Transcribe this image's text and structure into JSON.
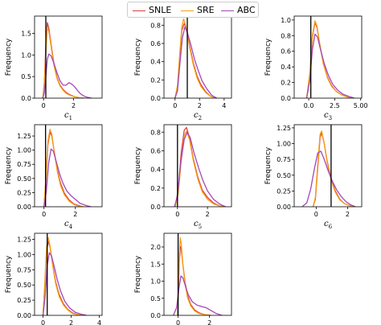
{
  "chart_data": [
    {
      "type": "line",
      "xlabel": "c",
      "xsub": "1",
      "ylabel": "Frequency",
      "xlim": [
        -0.6,
        3.9
      ],
      "ylim": [
        0,
        1.9
      ],
      "xticks": [
        "0",
        "2"
      ],
      "xtick_values": [
        0,
        2
      ],
      "yticks": [
        "0.0",
        "0.5",
        "1.0",
        "1.5"
      ],
      "ytick_values": [
        0.0,
        0.5,
        1.0,
        1.5
      ],
      "truth": 0.15,
      "series": [
        {
          "name": "SNLE",
          "x": [
            -0.05,
            0.05,
            0.15,
            0.25,
            0.35,
            0.5,
            0.7,
            0.9,
            1.1,
            1.3,
            1.5,
            1.8,
            2.1,
            2.4,
            2.7
          ],
          "y": [
            0,
            0.35,
            1.2,
            1.75,
            1.62,
            1.25,
            0.78,
            0.47,
            0.3,
            0.2,
            0.13,
            0.07,
            0.03,
            0.01,
            0
          ]
        },
        {
          "name": "SRE",
          "x": [
            -0.05,
            0.05,
            0.15,
            0.25,
            0.35,
            0.5,
            0.7,
            0.9,
            1.1,
            1.3,
            1.5,
            1.8,
            2.1,
            2.4,
            2.7
          ],
          "y": [
            0,
            0.3,
            1.05,
            1.62,
            1.55,
            1.2,
            0.74,
            0.45,
            0.28,
            0.18,
            0.11,
            0.06,
            0.03,
            0.01,
            0
          ]
        },
        {
          "name": "ABC",
          "x": [
            -0.05,
            0.05,
            0.15,
            0.25,
            0.35,
            0.5,
            0.7,
            0.9,
            1.1,
            1.3,
            1.5,
            1.7,
            1.9,
            2.1,
            2.3,
            2.5,
            2.8,
            3.2
          ],
          "y": [
            0,
            0.12,
            0.5,
            0.9,
            1.02,
            0.98,
            0.8,
            0.58,
            0.4,
            0.3,
            0.3,
            0.36,
            0.32,
            0.25,
            0.16,
            0.09,
            0.03,
            0
          ]
        }
      ]
    },
    {
      "type": "line",
      "xlabel": "c",
      "xsub": "2",
      "ylabel": "Frequency",
      "xlim": [
        -0.9,
        4.6
      ],
      "ylim": [
        0,
        0.9
      ],
      "xticks": [
        "0",
        "2",
        "4"
      ],
      "xtick_values": [
        0,
        2,
        4
      ],
      "yticks": [
        "0.0",
        "0.2",
        "0.4",
        "0.6",
        "0.8"
      ],
      "ytick_values": [
        0,
        0.2,
        0.4,
        0.6,
        0.8
      ],
      "truth": 1.0,
      "series": [
        {
          "name": "SNLE",
          "x": [
            0.0,
            0.2,
            0.4,
            0.55,
            0.75,
            0.95,
            1.2,
            1.5,
            1.8,
            2.1,
            2.5,
            2.9,
            3.3
          ],
          "y": [
            0,
            0.12,
            0.48,
            0.74,
            0.82,
            0.75,
            0.57,
            0.38,
            0.24,
            0.15,
            0.07,
            0.02,
            0
          ]
        },
        {
          "name": "SRE",
          "x": [
            0.0,
            0.2,
            0.4,
            0.55,
            0.7,
            0.9,
            1.2,
            1.5,
            1.8,
            2.1,
            2.5,
            2.9,
            3.3
          ],
          "y": [
            0,
            0.14,
            0.52,
            0.78,
            0.87,
            0.78,
            0.55,
            0.36,
            0.22,
            0.13,
            0.06,
            0.02,
            0
          ]
        },
        {
          "name": "ABC",
          "x": [
            0.0,
            0.2,
            0.4,
            0.6,
            0.8,
            1.0,
            1.3,
            1.6,
            1.9,
            2.2,
            2.6,
            3.0,
            3.4
          ],
          "y": [
            0,
            0.08,
            0.38,
            0.66,
            0.78,
            0.72,
            0.58,
            0.42,
            0.3,
            0.19,
            0.1,
            0.03,
            0
          ]
        }
      ]
    },
    {
      "type": "line",
      "xlabel": "c",
      "xsub": "3",
      "ylabel": "Frequency",
      "xlim": [
        -1.4,
        5.1
      ],
      "ylim": [
        0,
        1.05
      ],
      "xticks": [
        "0.0",
        "2.5",
        "5.00"
      ],
      "xtick_values": [
        0,
        2.5,
        5.0
      ],
      "yticks": [
        "0.0",
        "0.2",
        "0.4",
        "0.6",
        "0.8",
        "1.0"
      ],
      "ytick_values": [
        0,
        0.2,
        0.4,
        0.6,
        0.8,
        1.0
      ],
      "truth": 0.2,
      "series": [
        {
          "name": "SNLE",
          "x": [
            -0.2,
            0.1,
            0.35,
            0.6,
            0.8,
            1.05,
            1.4,
            1.8,
            2.2,
            2.7,
            3.2,
            3.8,
            4.3
          ],
          "y": [
            0,
            0.28,
            0.78,
            0.97,
            0.9,
            0.7,
            0.45,
            0.27,
            0.16,
            0.08,
            0.04,
            0.01,
            0
          ]
        },
        {
          "name": "SRE",
          "x": [
            -0.2,
            0.1,
            0.35,
            0.6,
            0.8,
            1.05,
            1.4,
            1.8,
            2.2,
            2.7,
            3.2,
            3.8,
            4.3
          ],
          "y": [
            0,
            0.32,
            0.8,
            0.99,
            0.92,
            0.7,
            0.44,
            0.26,
            0.15,
            0.08,
            0.04,
            0.01,
            0
          ]
        },
        {
          "name": "ABC",
          "x": [
            -0.2,
            0.1,
            0.35,
            0.6,
            0.85,
            1.1,
            1.5,
            1.9,
            2.3,
            2.8,
            3.3,
            3.9,
            4.4
          ],
          "y": [
            0,
            0.22,
            0.62,
            0.82,
            0.78,
            0.64,
            0.44,
            0.29,
            0.18,
            0.1,
            0.05,
            0.02,
            0
          ]
        }
      ]
    },
    {
      "type": "line",
      "xlabel": "c",
      "xsub": "4",
      "ylabel": "Frequency",
      "xlim": [
        -0.6,
        3.7
      ],
      "ylim": [
        0,
        1.45
      ],
      "xticks": [
        "0",
        "2"
      ],
      "xtick_values": [
        0,
        2
      ],
      "yticks": [
        "0.00",
        "0.25",
        "0.50",
        "0.75",
        "1.00",
        "1.25"
      ],
      "ytick_values": [
        0,
        0.25,
        0.5,
        0.75,
        1.0,
        1.25
      ],
      "truth": 0.1,
      "series": [
        {
          "name": "SNLE",
          "x": [
            0.0,
            0.12,
            0.25,
            0.38,
            0.5,
            0.65,
            0.85,
            1.05,
            1.3,
            1.6,
            1.9,
            2.2,
            2.5
          ],
          "y": [
            0,
            0.45,
            1.1,
            1.32,
            1.25,
            0.98,
            0.65,
            0.42,
            0.24,
            0.12,
            0.05,
            0.02,
            0
          ]
        },
        {
          "name": "SRE",
          "x": [
            0.0,
            0.12,
            0.25,
            0.38,
            0.5,
            0.65,
            0.85,
            1.05,
            1.3,
            1.6,
            1.9,
            2.2,
            2.5
          ],
          "y": [
            0,
            0.5,
            1.15,
            1.37,
            1.28,
            0.98,
            0.62,
            0.38,
            0.21,
            0.1,
            0.04,
            0.01,
            0
          ]
        },
        {
          "name": "ABC",
          "x": [
            0.0,
            0.15,
            0.3,
            0.45,
            0.6,
            0.8,
            1.0,
            1.2,
            1.45,
            1.7,
            2.0,
            2.3,
            2.7,
            3.0
          ],
          "y": [
            0,
            0.28,
            0.78,
            1.02,
            0.98,
            0.78,
            0.58,
            0.42,
            0.28,
            0.2,
            0.13,
            0.06,
            0.02,
            0
          ]
        }
      ]
    },
    {
      "type": "line",
      "xlabel": "c",
      "xsub": "5",
      "ylabel": "Frequency",
      "xlim": [
        -0.9,
        3.6
      ],
      "ylim": [
        0,
        0.88
      ],
      "xticks": [
        "0",
        "2"
      ],
      "xtick_values": [
        0,
        2
      ],
      "yticks": [
        "0.0",
        "0.2",
        "0.4",
        "0.6",
        "0.8"
      ],
      "ytick_values": [
        0,
        0.2,
        0.4,
        0.6,
        0.8
      ],
      "truth": 0.0,
      "series": [
        {
          "name": "SNLE",
          "x": [
            -0.15,
            0.05,
            0.25,
            0.45,
            0.6,
            0.8,
            1.05,
            1.35,
            1.65,
            2.0,
            2.4,
            2.8,
            3.2
          ],
          "y": [
            0,
            0.18,
            0.58,
            0.82,
            0.85,
            0.74,
            0.52,
            0.32,
            0.18,
            0.1,
            0.04,
            0.01,
            0
          ]
        },
        {
          "name": "SRE",
          "x": [
            -0.15,
            0.05,
            0.25,
            0.45,
            0.6,
            0.8,
            1.05,
            1.35,
            1.65,
            2.0,
            2.4,
            2.8,
            3.2
          ],
          "y": [
            0,
            0.14,
            0.5,
            0.76,
            0.81,
            0.72,
            0.5,
            0.3,
            0.16,
            0.08,
            0.03,
            0.01,
            0
          ]
        },
        {
          "name": "ABC",
          "x": [
            -0.2,
            0.0,
            0.2,
            0.45,
            0.65,
            0.85,
            1.1,
            1.4,
            1.7,
            2.0,
            2.4,
            2.8,
            3.2
          ],
          "y": [
            0,
            0.12,
            0.45,
            0.72,
            0.8,
            0.74,
            0.58,
            0.42,
            0.28,
            0.17,
            0.08,
            0.03,
            0
          ]
        }
      ]
    },
    {
      "type": "line",
      "xlabel": "c",
      "xsub": "6",
      "ylabel": "Frequency",
      "xlim": [
        -1.4,
        2.9
      ],
      "ylim": [
        0,
        1.3
      ],
      "xticks": [
        "0",
        "2"
      ],
      "xtick_values": [
        0,
        2
      ],
      "yticks": [
        "0.00",
        "0.25",
        "0.50",
        "0.75",
        "1.00",
        "1.25"
      ],
      "ytick_values": [
        0,
        0.25,
        0.5,
        0.75,
        1.0,
        1.25
      ],
      "truth": 0.95,
      "series": [
        {
          "name": "SNLE",
          "x": [
            -0.2,
            -0.05,
            0.1,
            0.25,
            0.35,
            0.5,
            0.7,
            0.95,
            1.2,
            1.5,
            1.8,
            2.1,
            2.4
          ],
          "y": [
            0,
            0.12,
            0.62,
            1.1,
            1.17,
            1.02,
            0.72,
            0.45,
            0.26,
            0.12,
            0.05,
            0.02,
            0
          ]
        },
        {
          "name": "SRE",
          "x": [
            -0.2,
            -0.05,
            0.1,
            0.25,
            0.35,
            0.5,
            0.7,
            0.95,
            1.2,
            1.5,
            1.8,
            2.1,
            2.4
          ],
          "y": [
            0,
            0.15,
            0.68,
            1.15,
            1.2,
            1.02,
            0.7,
            0.43,
            0.24,
            0.11,
            0.05,
            0.02,
            0
          ]
        },
        {
          "name": "ABC",
          "x": [
            -0.9,
            -0.6,
            -0.35,
            -0.1,
            0.1,
            0.3,
            0.5,
            0.75,
            1.0,
            1.3,
            1.6,
            1.9,
            2.2,
            2.5
          ],
          "y": [
            0,
            0.06,
            0.28,
            0.62,
            0.85,
            0.88,
            0.76,
            0.58,
            0.42,
            0.27,
            0.16,
            0.08,
            0.03,
            0
          ]
        }
      ]
    },
    {
      "type": "line",
      "xlabel": "c",
      "xsub": "7",
      "ylabel": "Frequency",
      "xlim": [
        -0.6,
        4.2
      ],
      "ylim": [
        0,
        1.35
      ],
      "xticks": [
        "0",
        "2",
        "4"
      ],
      "xtick_values": [
        0,
        2,
        4
      ],
      "yticks": [
        "0.00",
        "0.25",
        "0.50",
        "0.75",
        "1.00",
        "1.25"
      ],
      "ytick_values": [
        0,
        0.25,
        0.5,
        0.75,
        1.0,
        1.25
      ],
      "truth": 0.3,
      "series": [
        {
          "name": "SNLE",
          "x": [
            0.0,
            0.12,
            0.25,
            0.38,
            0.5,
            0.7,
            0.9,
            1.15,
            1.45,
            1.75,
            2.1,
            2.5,
            2.9
          ],
          "y": [
            0,
            0.45,
            1.05,
            1.22,
            1.12,
            0.82,
            0.55,
            0.34,
            0.19,
            0.1,
            0.04,
            0.01,
            0
          ]
        },
        {
          "name": "SRE",
          "x": [
            0.0,
            0.12,
            0.25,
            0.38,
            0.5,
            0.7,
            0.9,
            1.15,
            1.45,
            1.75,
            2.1,
            2.5,
            2.9
          ],
          "y": [
            0,
            0.5,
            1.12,
            1.28,
            1.14,
            0.8,
            0.52,
            0.31,
            0.17,
            0.09,
            0.03,
            0.01,
            0
          ]
        },
        {
          "name": "ABC",
          "x": [
            0.0,
            0.15,
            0.3,
            0.45,
            0.6,
            0.8,
            1.0,
            1.25,
            1.55,
            1.9,
            2.3,
            2.7,
            3.1
          ],
          "y": [
            0,
            0.3,
            0.82,
            1.03,
            0.98,
            0.8,
            0.6,
            0.4,
            0.23,
            0.12,
            0.05,
            0.02,
            0
          ]
        }
      ]
    },
    {
      "type": "line",
      "xlabel": "c",
      "xsub": "8",
      "ylabel": "Frequency",
      "xlim": [
        -0.9,
        3.4
      ],
      "ylim": [
        0,
        2.4
      ],
      "xticks": [
        "0",
        "2"
      ],
      "xtick_values": [
        0,
        2
      ],
      "yticks": [
        "0.0",
        "0.5",
        "1.0",
        "1.5",
        "2.0"
      ],
      "ytick_values": [
        0,
        0.5,
        1.0,
        1.5,
        2.0
      ],
      "truth": 0.0,
      "series": [
        {
          "name": "SNLE",
          "x": [
            -0.05,
            0.02,
            0.08,
            0.14,
            0.2,
            0.3,
            0.45,
            0.6,
            0.8,
            1.05,
            1.35,
            1.7,
            2.1
          ],
          "y": [
            0,
            0.65,
            1.55,
            2.02,
            1.95,
            1.5,
            0.95,
            0.58,
            0.32,
            0.16,
            0.07,
            0.02,
            0
          ]
        },
        {
          "name": "SRE",
          "x": [
            -0.05,
            0.02,
            0.08,
            0.14,
            0.2,
            0.3,
            0.45,
            0.6,
            0.8,
            1.05,
            1.35,
            1.7,
            2.1
          ],
          "y": [
            0,
            0.8,
            1.8,
            2.27,
            2.1,
            1.5,
            0.9,
            0.52,
            0.28,
            0.13,
            0.05,
            0.02,
            0
          ]
        },
        {
          "name": "ABC",
          "x": [
            -0.3,
            -0.1,
            0.05,
            0.18,
            0.3,
            0.45,
            0.65,
            0.9,
            1.2,
            1.5,
            1.8,
            2.1,
            2.4,
            2.8
          ],
          "y": [
            0,
            0.22,
            0.78,
            1.15,
            1.1,
            0.88,
            0.6,
            0.4,
            0.3,
            0.26,
            0.22,
            0.14,
            0.06,
            0
          ]
        }
      ]
    }
  ],
  "legend": [
    {
      "label": "SNLE",
      "color": "#e03c3c"
    },
    {
      "label": "SRE",
      "color": "#f4a015"
    },
    {
      "label": "ABC",
      "color": "#a349b8"
    }
  ],
  "truth_line_color": "#000000"
}
